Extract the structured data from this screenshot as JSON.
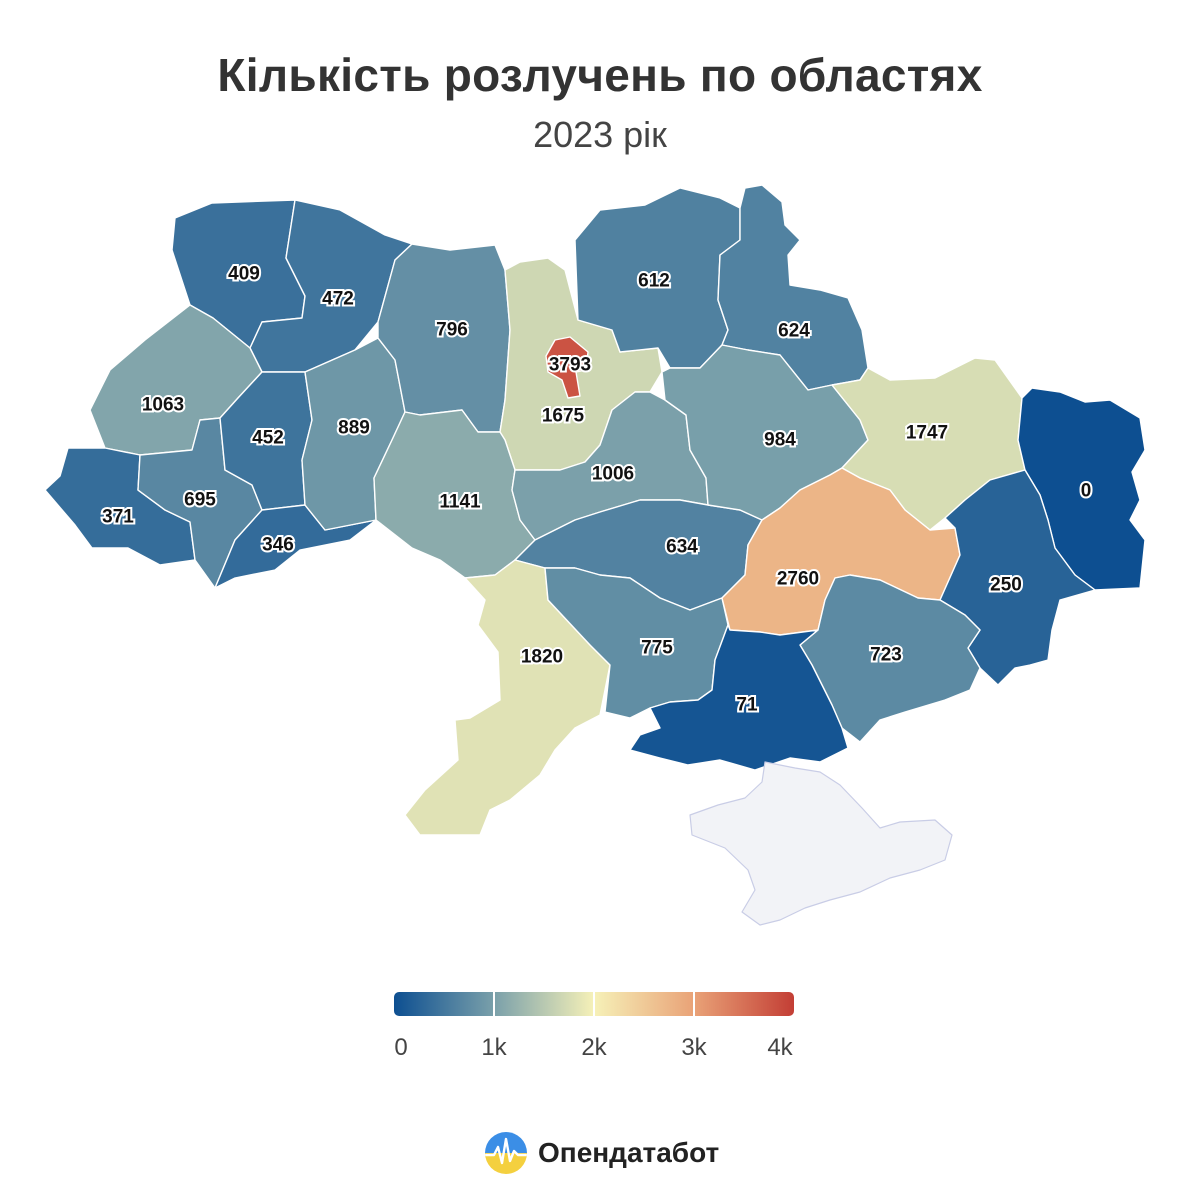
{
  "title": "Кількість розлучень по областях",
  "subtitle": "2023 рік",
  "legend": {
    "ticks": [
      "0",
      "1k",
      "2k",
      "3k",
      "4k"
    ],
    "min": 0,
    "max": 4000,
    "colors": [
      "#0d4f91",
      "#7aa0aa",
      "#f6f1b8",
      "#e9a277",
      "#c33e35"
    ]
  },
  "brand": {
    "name": "Опендатабот",
    "logo": "opendatabot-logo"
  },
  "chart_data": {
    "type": "choropleth",
    "title": "Кількість розлучень по областях",
    "subtitle": "2023 рік",
    "scale": {
      "min": 0,
      "max": 4000
    },
    "regions": [
      {
        "id": "volyn",
        "value": 409
      },
      {
        "id": "rivne",
        "value": 472
      },
      {
        "id": "lviv",
        "value": 1063
      },
      {
        "id": "ternopil",
        "value": 452
      },
      {
        "id": "khmelnytskyi",
        "value": 889
      },
      {
        "id": "zhytomyr",
        "value": 796
      },
      {
        "id": "kyiv-oblast",
        "value": 1675
      },
      {
        "id": "kyiv-city",
        "value": 3793
      },
      {
        "id": "chernihiv",
        "value": 612
      },
      {
        "id": "sumy",
        "value": 624
      },
      {
        "id": "zakarpattia",
        "value": 371
      },
      {
        "id": "ivano-frankivsk",
        "value": 695
      },
      {
        "id": "chernivtsi",
        "value": 346
      },
      {
        "id": "vinnytsia",
        "value": 1141
      },
      {
        "id": "cherkasy",
        "value": 1006
      },
      {
        "id": "poltava",
        "value": 984
      },
      {
        "id": "kharkiv",
        "value": 1747
      },
      {
        "id": "luhansk",
        "value": 0
      },
      {
        "id": "kirovohrad",
        "value": 634
      },
      {
        "id": "dnipropetrovsk",
        "value": 2760
      },
      {
        "id": "donetsk",
        "value": 250
      },
      {
        "id": "odesa",
        "value": 1820
      },
      {
        "id": "mykolaiv",
        "value": 775
      },
      {
        "id": "zaporizhzhia",
        "value": 723
      },
      {
        "id": "kherson",
        "value": 71
      },
      {
        "id": "crimea",
        "value": null
      }
    ]
  }
}
